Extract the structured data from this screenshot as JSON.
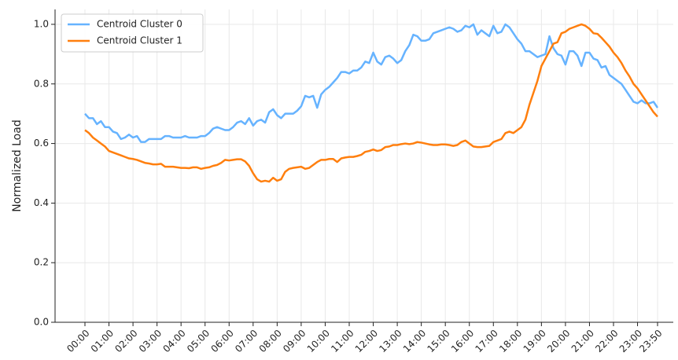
{
  "chart_data": {
    "type": "line",
    "ylabel": "Normalized Load",
    "categories": [
      "00:00",
      null,
      null,
      null,
      null,
      null,
      "01:00",
      null,
      null,
      null,
      null,
      null,
      "02:00",
      null,
      null,
      null,
      null,
      null,
      "03:00",
      null,
      null,
      null,
      null,
      null,
      "04:00",
      null,
      null,
      null,
      null,
      null,
      "05:00",
      null,
      null,
      null,
      null,
      null,
      "06:00",
      null,
      null,
      null,
      null,
      null,
      "07:00",
      null,
      null,
      null,
      null,
      null,
      "08:00",
      null,
      null,
      null,
      null,
      null,
      "09:00",
      null,
      null,
      null,
      null,
      null,
      "10:00",
      null,
      null,
      null,
      null,
      null,
      "11:00",
      null,
      null,
      null,
      null,
      null,
      "12:00",
      null,
      null,
      null,
      null,
      null,
      "13:00",
      null,
      null,
      null,
      null,
      null,
      "14:00",
      null,
      null,
      null,
      null,
      null,
      "15:00",
      null,
      null,
      null,
      null,
      null,
      "16:00",
      null,
      null,
      null,
      null,
      null,
      "17:00",
      null,
      null,
      null,
      null,
      null,
      "18:00",
      null,
      null,
      null,
      null,
      null,
      "19:00",
      null,
      null,
      null,
      null,
      null,
      "20:00",
      null,
      null,
      null,
      null,
      null,
      "21:00",
      null,
      null,
      null,
      null,
      null,
      "22:00",
      null,
      null,
      null,
      null,
      null,
      "23:00",
      null,
      null,
      null,
      null,
      "23:50"
    ],
    "series": [
      {
        "name": "Centroid Cluster 0",
        "color": "#66b3ff",
        "values": [
          0.7,
          0.685,
          0.685,
          0.665,
          0.675,
          0.655,
          0.655,
          0.64,
          0.635,
          0.615,
          0.62,
          0.63,
          0.62,
          0.625,
          0.605,
          0.605,
          0.615,
          0.615,
          0.615,
          0.615,
          0.625,
          0.625,
          0.62,
          0.62,
          0.62,
          0.625,
          0.62,
          0.62,
          0.62,
          0.625,
          0.625,
          0.635,
          0.65,
          0.655,
          0.65,
          0.645,
          0.645,
          0.655,
          0.67,
          0.675,
          0.665,
          0.685,
          0.66,
          0.675,
          0.68,
          0.67,
          0.705,
          0.715,
          0.695,
          0.685,
          0.7,
          0.7,
          0.7,
          0.71,
          0.725,
          0.76,
          0.755,
          0.76,
          0.72,
          0.765,
          0.78,
          0.79,
          0.805,
          0.82,
          0.84,
          0.84,
          0.835,
          0.845,
          0.845,
          0.855,
          0.875,
          0.87,
          0.905,
          0.875,
          0.865,
          0.89,
          0.895,
          0.885,
          0.87,
          0.88,
          0.91,
          0.93,
          0.965,
          0.96,
          0.945,
          0.945,
          0.95,
          0.97,
          0.975,
          0.98,
          0.985,
          0.99,
          0.985,
          0.975,
          0.98,
          0.995,
          0.99,
          1.0,
          0.965,
          0.98,
          0.97,
          0.96,
          0.995,
          0.97,
          0.975,
          1.0,
          0.99,
          0.97,
          0.95,
          0.935,
          0.91,
          0.91,
          0.9,
          0.89,
          0.895,
          0.9,
          0.96,
          0.92,
          0.9,
          0.895,
          0.865,
          0.91,
          0.91,
          0.895,
          0.86,
          0.905,
          0.905,
          0.885,
          0.88,
          0.855,
          0.86,
          0.83,
          0.82,
          0.81,
          0.8,
          0.78,
          0.76,
          0.74,
          0.735,
          0.745,
          0.735,
          0.735,
          0.74,
          0.72
        ]
      },
      {
        "name": "Centroid Cluster 1",
        "color": "#ff7f0e",
        "values": [
          0.645,
          0.635,
          0.62,
          0.61,
          0.6,
          0.59,
          0.575,
          0.57,
          0.565,
          0.56,
          0.555,
          0.55,
          0.548,
          0.545,
          0.54,
          0.535,
          0.533,
          0.53,
          0.53,
          0.532,
          0.522,
          0.522,
          0.522,
          0.52,
          0.518,
          0.518,
          0.517,
          0.52,
          0.52,
          0.515,
          0.518,
          0.52,
          0.525,
          0.528,
          0.535,
          0.545,
          0.543,
          0.545,
          0.547,
          0.547,
          0.54,
          0.525,
          0.5,
          0.48,
          0.472,
          0.475,
          0.472,
          0.485,
          0.475,
          0.48,
          0.505,
          0.515,
          0.518,
          0.52,
          0.522,
          0.515,
          0.518,
          0.528,
          0.538,
          0.545,
          0.545,
          0.548,
          0.548,
          0.538,
          0.55,
          0.553,
          0.555,
          0.555,
          0.558,
          0.562,
          0.572,
          0.575,
          0.58,
          0.575,
          0.578,
          0.588,
          0.59,
          0.595,
          0.595,
          0.598,
          0.6,
          0.598,
          0.6,
          0.605,
          0.603,
          0.6,
          0.597,
          0.595,
          0.595,
          0.597,
          0.597,
          0.595,
          0.592,
          0.595,
          0.605,
          0.61,
          0.6,
          0.59,
          0.588,
          0.588,
          0.59,
          0.592,
          0.605,
          0.61,
          0.615,
          0.635,
          0.64,
          0.635,
          0.645,
          0.655,
          0.68,
          0.73,
          0.77,
          0.81,
          0.86,
          0.885,
          0.91,
          0.935,
          0.94,
          0.97,
          0.975,
          0.985,
          0.99,
          0.995,
          1.0,
          0.995,
          0.985,
          0.97,
          0.968,
          0.955,
          0.94,
          0.925,
          0.905,
          0.89,
          0.87,
          0.845,
          0.825,
          0.8,
          0.785,
          0.765,
          0.745,
          0.725,
          0.705,
          0.69
        ]
      }
    ],
    "ylim": [
      0,
      1.05
    ],
    "yticks": [
      {
        "value": 0,
        "label": "0.0"
      },
      0.2,
      0.4,
      0.6,
      0.8,
      {
        "value": 1,
        "label": "1.0"
      }
    ],
    "grid": true,
    "legend": "upper-left"
  }
}
